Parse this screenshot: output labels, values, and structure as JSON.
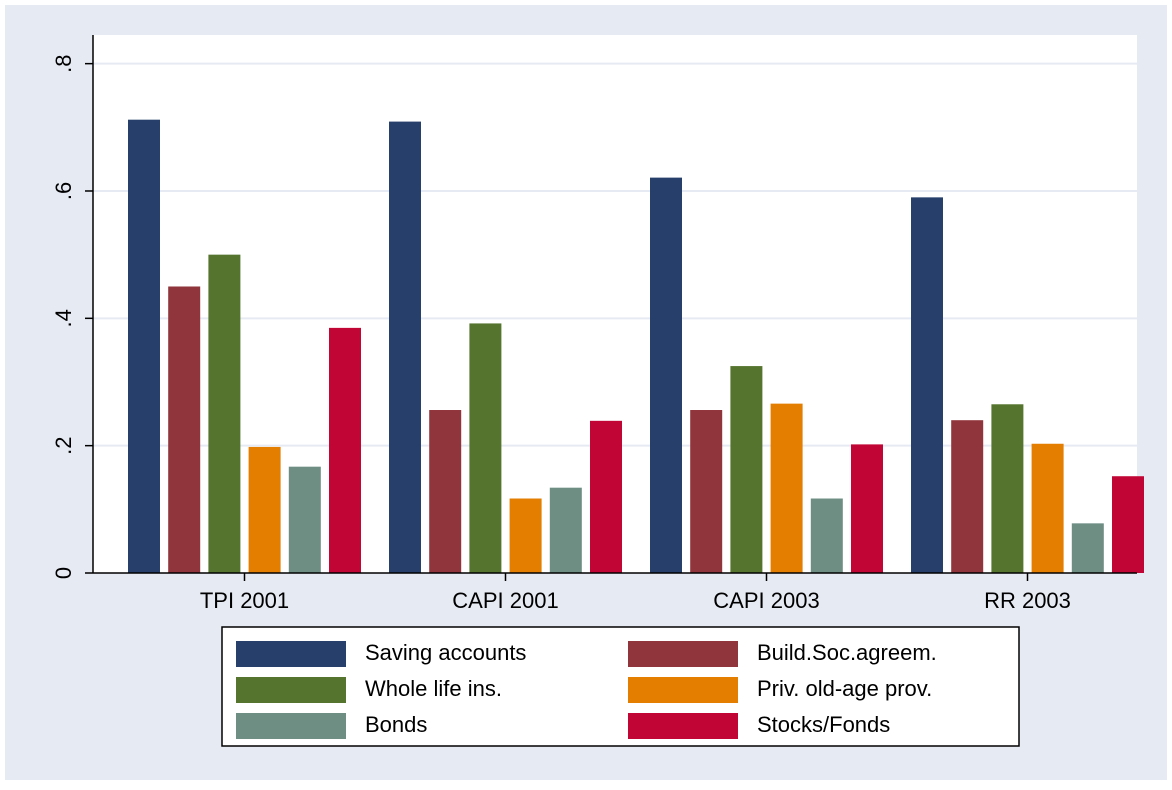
{
  "chart_data": {
    "type": "bar",
    "categories": [
      "TPI 2001",
      "CAPI 2001",
      "CAPI 2003",
      "RR 2003"
    ],
    "series": [
      {
        "name": "Saving accounts",
        "color": "#26406b",
        "values": [
          0.712,
          0.709,
          0.621,
          0.59
        ]
      },
      {
        "name": "Build.Soc.agreem.",
        "color": "#90353b",
        "values": [
          0.45,
          0.256,
          0.256,
          0.24
        ]
      },
      {
        "name": "Whole life ins.",
        "color": "#55752f",
        "values": [
          0.5,
          0.392,
          0.325,
          0.265
        ]
      },
      {
        "name": "Priv. old-age prov.",
        "color": "#e37e00",
        "values": [
          0.198,
          0.117,
          0.266,
          0.203
        ]
      },
      {
        "name": "Bonds",
        "color": "#6e8e84",
        "values": [
          0.167,
          0.134,
          0.117,
          0.078
        ]
      },
      {
        "name": "Stocks/Fonds",
        "color": "#c10534",
        "values": [
          0.385,
          0.239,
          0.202,
          0.152
        ]
      }
    ],
    "ylim": [
      0,
      0.845
    ],
    "yticks": [
      0,
      {
        "value": 0.2,
        "label": ".2"
      },
      {
        "value": 0.4,
        "label": ".4"
      },
      {
        "value": 0.6,
        "label": ".6"
      },
      {
        "value": 0.8,
        "label": ".8"
      }
    ],
    "grid": true,
    "legend": "bottom"
  }
}
